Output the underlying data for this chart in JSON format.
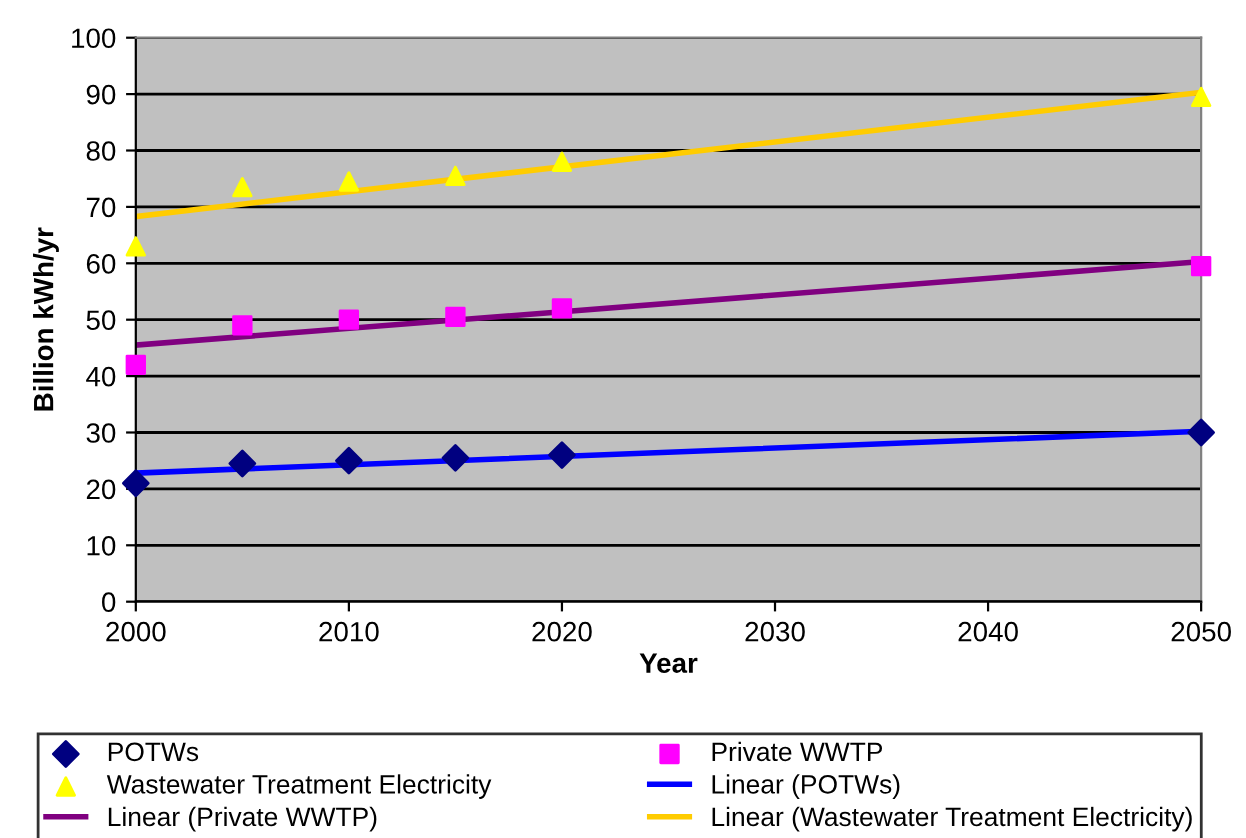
{
  "chart_data": {
    "type": "scatter",
    "xlabel": "Year",
    "ylabel": "Billion kWh/yr",
    "xlim": [
      2000,
      2050
    ],
    "xticks": [
      2000,
      2010,
      2020,
      2030,
      2040,
      2050
    ],
    "ylim": [
      0,
      100
    ],
    "yticks": [
      0,
      10,
      20,
      30,
      40,
      50,
      60,
      70,
      80,
      90,
      100
    ],
    "grid": "y",
    "legend": "bottom",
    "series": [
      {
        "name": "POTWs",
        "marker": "diamond",
        "color": "#000080",
        "x": [
          2000,
          2005,
          2010,
          2015,
          2020,
          2050
        ],
        "values": [
          21,
          24.5,
          25,
          25.5,
          26,
          30
        ]
      },
      {
        "name": "Private WWTP",
        "marker": "square",
        "color": "#ff00ff",
        "x": [
          2000,
          2005,
          2010,
          2015,
          2020,
          2050
        ],
        "values": [
          42,
          49,
          50,
          50.5,
          52,
          59.5
        ]
      },
      {
        "name": "Wastewater Treatment Electricity",
        "marker": "triangle",
        "color": "#ffff00",
        "x": [
          2000,
          2005,
          2010,
          2015,
          2020,
          2050
        ],
        "values": [
          63,
          73.5,
          74.5,
          75.5,
          78,
          89.5
        ]
      },
      {
        "name": "Linear (POTWs)",
        "type": "line",
        "color": "#0000ff",
        "x": [
          2000,
          2050
        ],
        "values": [
          22.8,
          30.2
        ]
      },
      {
        "name": "Linear (Private WWTP)",
        "type": "line",
        "color": "#800080",
        "x": [
          2000,
          2050
        ],
        "values": [
          45.5,
          60.3
        ]
      },
      {
        "name": "Linear (Wastewater Treatment Electricity)",
        "type": "line",
        "color": "#ffcc00",
        "x": [
          2000,
          2050
        ],
        "values": [
          68.3,
          90.3
        ]
      }
    ]
  }
}
